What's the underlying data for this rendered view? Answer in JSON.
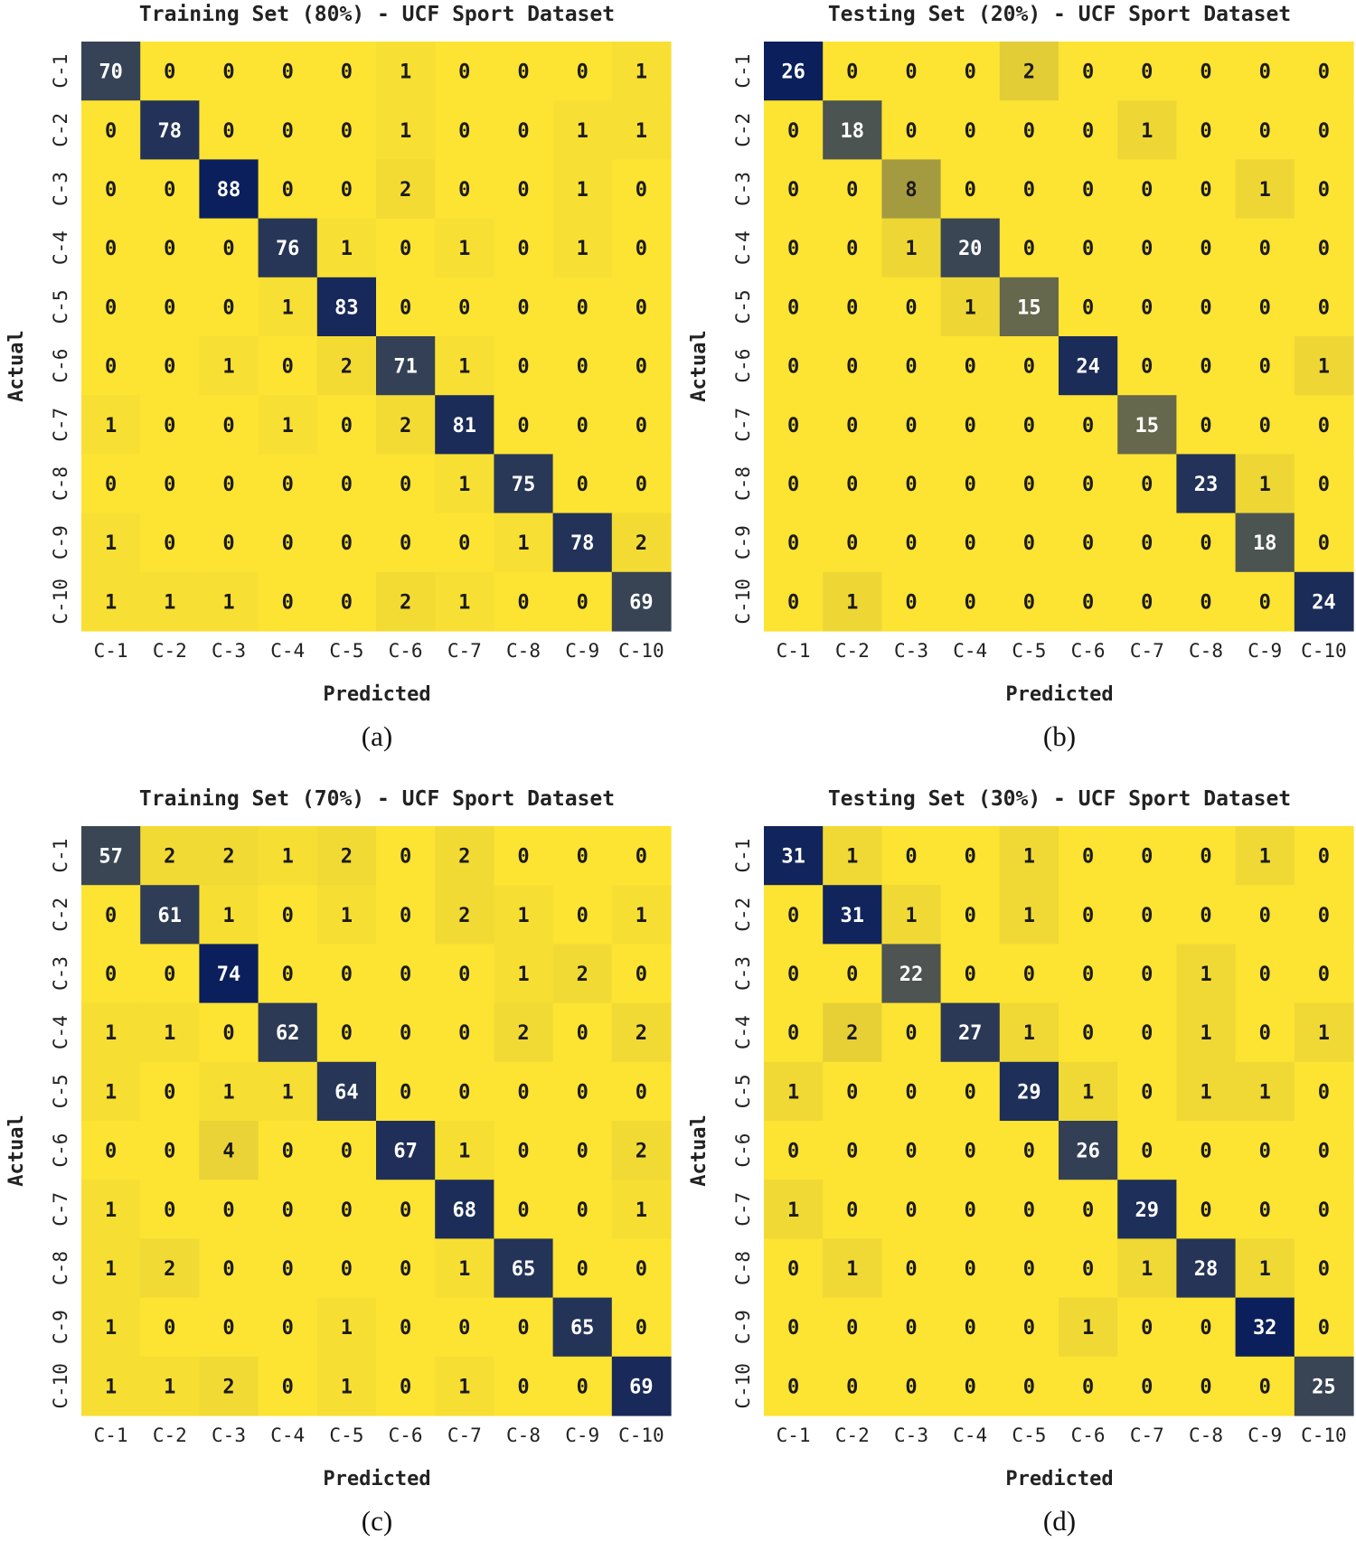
{
  "labels": [
    "C-1",
    "C-2",
    "C-3",
    "C-4",
    "C-5",
    "C-6",
    "C-7",
    "C-8",
    "C-9",
    "C-10"
  ],
  "colors": {
    "low": "#fde332",
    "high": "#0b1f5c"
  },
  "chart_data": [
    {
      "type": "heatmap",
      "title": "Training Set (80%) - UCF Sport Dataset",
      "xlabel": "Predicted",
      "ylabel": "Actual",
      "caption": "(a)",
      "max": 88,
      "matrix": [
        [
          70,
          0,
          0,
          0,
          0,
          1,
          0,
          0,
          0,
          1
        ],
        [
          0,
          78,
          0,
          0,
          0,
          1,
          0,
          0,
          1,
          1
        ],
        [
          0,
          0,
          88,
          0,
          0,
          2,
          0,
          0,
          1,
          0
        ],
        [
          0,
          0,
          0,
          76,
          1,
          0,
          1,
          0,
          1,
          0
        ],
        [
          0,
          0,
          0,
          1,
          83,
          0,
          0,
          0,
          0,
          0
        ],
        [
          0,
          0,
          1,
          0,
          2,
          71,
          1,
          0,
          0,
          0
        ],
        [
          1,
          0,
          0,
          1,
          0,
          2,
          81,
          0,
          0,
          0
        ],
        [
          0,
          0,
          0,
          0,
          0,
          0,
          1,
          75,
          0,
          0
        ],
        [
          1,
          0,
          0,
          0,
          0,
          0,
          0,
          1,
          78,
          2
        ],
        [
          1,
          1,
          1,
          0,
          0,
          2,
          1,
          0,
          0,
          69
        ]
      ]
    },
    {
      "type": "heatmap",
      "title": "Testing Set (20%) - UCF Sport Dataset",
      "xlabel": "Predicted",
      "ylabel": "Actual",
      "caption": "(b)",
      "max": 26,
      "matrix": [
        [
          26,
          0,
          0,
          0,
          2,
          0,
          0,
          0,
          0,
          0
        ],
        [
          0,
          18,
          0,
          0,
          0,
          0,
          1,
          0,
          0,
          0
        ],
        [
          0,
          0,
          8,
          0,
          0,
          0,
          0,
          0,
          1,
          0
        ],
        [
          0,
          0,
          1,
          20,
          0,
          0,
          0,
          0,
          0,
          0
        ],
        [
          0,
          0,
          0,
          1,
          15,
          0,
          0,
          0,
          0,
          0
        ],
        [
          0,
          0,
          0,
          0,
          0,
          24,
          0,
          0,
          0,
          1
        ],
        [
          0,
          0,
          0,
          0,
          0,
          0,
          15,
          0,
          0,
          0
        ],
        [
          0,
          0,
          0,
          0,
          0,
          0,
          0,
          23,
          1,
          0
        ],
        [
          0,
          0,
          0,
          0,
          0,
          0,
          0,
          0,
          18,
          0
        ],
        [
          0,
          1,
          0,
          0,
          0,
          0,
          0,
          0,
          0,
          24
        ]
      ]
    },
    {
      "type": "heatmap",
      "title": "Training Set (70%) - UCF Sport Dataset",
      "xlabel": "Predicted",
      "ylabel": "Actual",
      "caption": "(c)",
      "max": 74,
      "matrix": [
        [
          57,
          2,
          2,
          1,
          2,
          0,
          2,
          0,
          0,
          0
        ],
        [
          0,
          61,
          1,
          0,
          1,
          0,
          2,
          1,
          0,
          1
        ],
        [
          0,
          0,
          74,
          0,
          0,
          0,
          0,
          1,
          2,
          0
        ],
        [
          1,
          1,
          0,
          62,
          0,
          0,
          0,
          2,
          0,
          2
        ],
        [
          1,
          0,
          1,
          1,
          64,
          0,
          0,
          0,
          0,
          0
        ],
        [
          0,
          0,
          4,
          0,
          0,
          67,
          1,
          0,
          0,
          2
        ],
        [
          1,
          0,
          0,
          0,
          0,
          0,
          68,
          0,
          0,
          1
        ],
        [
          1,
          2,
          0,
          0,
          0,
          0,
          1,
          65,
          0,
          0
        ],
        [
          1,
          0,
          0,
          0,
          1,
          0,
          0,
          0,
          65,
          0
        ],
        [
          1,
          1,
          2,
          0,
          1,
          0,
          1,
          0,
          0,
          69
        ]
      ]
    },
    {
      "type": "heatmap",
      "title": "Testing Set (30%) - UCF Sport Dataset",
      "xlabel": "Predicted",
      "ylabel": "Actual",
      "caption": "(d)",
      "max": 32,
      "matrix": [
        [
          31,
          1,
          0,
          0,
          1,
          0,
          0,
          0,
          1,
          0
        ],
        [
          0,
          31,
          1,
          0,
          1,
          0,
          0,
          0,
          0,
          0
        ],
        [
          0,
          0,
          22,
          0,
          0,
          0,
          0,
          1,
          0,
          0
        ],
        [
          0,
          2,
          0,
          27,
          1,
          0,
          0,
          1,
          0,
          1
        ],
        [
          1,
          0,
          0,
          0,
          29,
          1,
          0,
          1,
          1,
          0
        ],
        [
          0,
          0,
          0,
          0,
          0,
          26,
          0,
          0,
          0,
          0
        ],
        [
          1,
          0,
          0,
          0,
          0,
          0,
          29,
          0,
          0,
          0
        ],
        [
          0,
          1,
          0,
          0,
          0,
          0,
          1,
          28,
          1,
          0
        ],
        [
          0,
          0,
          0,
          0,
          0,
          1,
          0,
          0,
          32,
          0
        ],
        [
          0,
          0,
          0,
          0,
          0,
          0,
          0,
          0,
          0,
          25
        ]
      ]
    }
  ]
}
